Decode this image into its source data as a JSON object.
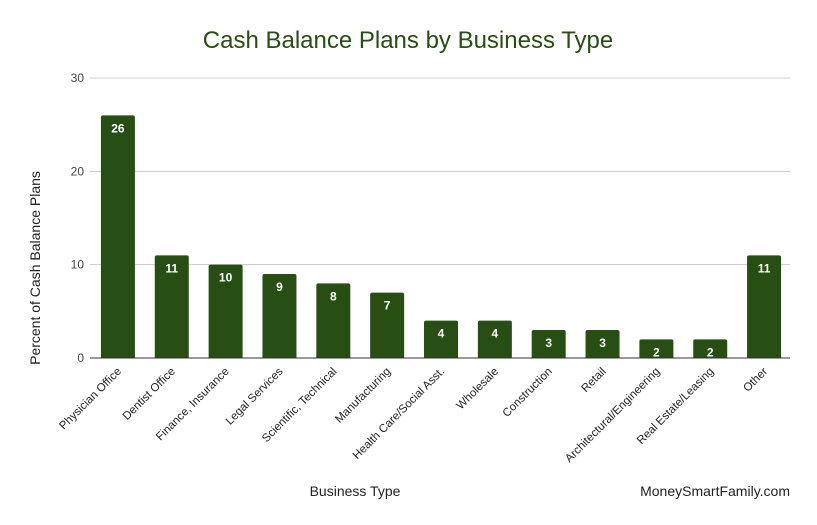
{
  "chart_data": {
    "type": "bar",
    "title": "Cash Balance Plans by Business Type",
    "xlabel": "Business Type",
    "ylabel": "Percent of Cash Balance Plans",
    "ylim": [
      0,
      30
    ],
    "yticks": [
      0,
      10,
      20,
      30
    ],
    "grid": true,
    "bar_color": "#274e13",
    "categories": [
      "Physician Office",
      "Dentist Office",
      "Finance, Insurance",
      "Legal Services",
      "Scientific, Technical",
      "Manufacturing",
      "Health Care/Social Asst.",
      "Wholesale",
      "Construction",
      "Retail",
      "Architectural/Engineering",
      "Real Estate/Leasing",
      "Other"
    ],
    "values": [
      26,
      11,
      10,
      9,
      8,
      7,
      4,
      4,
      3,
      3,
      2,
      2,
      11
    ],
    "source": "MoneySmartFamily.com"
  }
}
